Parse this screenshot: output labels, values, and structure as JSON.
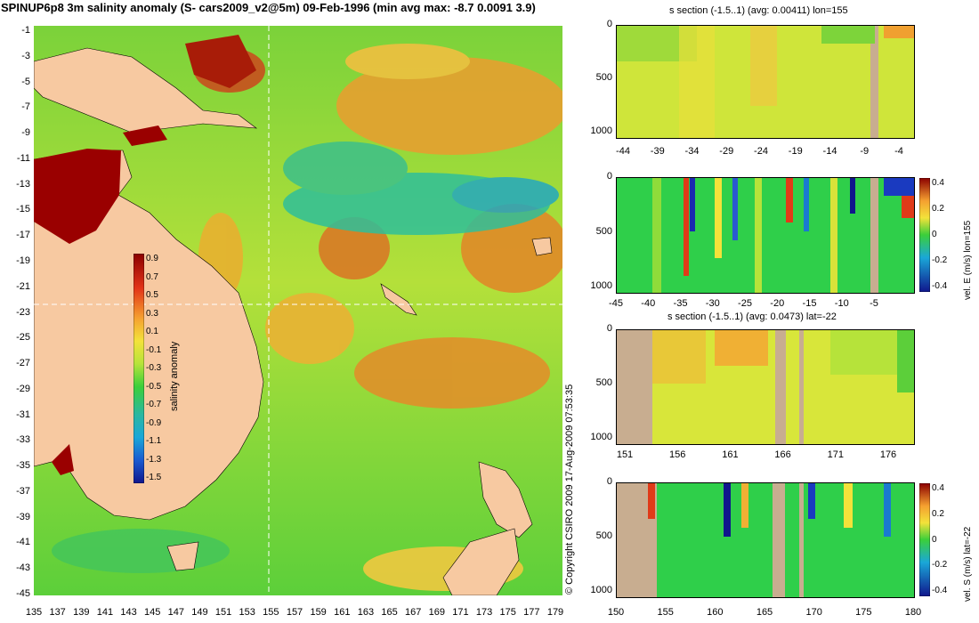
{
  "title": "SPINUP6p8 3m salinity anomaly (S- cars2009_v2@5m) 09-Feb-1996 (min avg max: -8.7 0.0091 3.9)",
  "copyright": "© Copyright CSIRO 2009   17-Aug-2009 07:53:35",
  "map": {
    "yticks": [
      "-1",
      "-3",
      "-5",
      "-7",
      "-9",
      "-11",
      "-13",
      "-15",
      "-17",
      "-19",
      "-21",
      "-23",
      "-25",
      "-27",
      "-29",
      "-31",
      "-33",
      "-35",
      "-37",
      "-39",
      "-41",
      "-43",
      "-45"
    ],
    "xticks": [
      "135",
      "137",
      "139",
      "141",
      "143",
      "145",
      "147",
      "149",
      "151",
      "153",
      "155",
      "157",
      "159",
      "161",
      "163",
      "165",
      "167",
      "169",
      "171",
      "173",
      "175",
      "177",
      "179"
    ],
    "colorbar": {
      "label": "salinity anomaly",
      "ticks": [
        "0.9",
        "0.7",
        "0.5",
        "0.3",
        "0.1",
        "-0.1",
        "-0.3",
        "-0.5",
        "-0.7",
        "-0.9",
        "-1.1",
        "-1.3",
        "-1.5"
      ]
    },
    "section_lon": "155",
    "section_lat": "-22"
  },
  "panels": [
    {
      "title": "s section (-1.5..1) (avg: 0.00411) lon=155",
      "yticks": [
        "0",
        "500",
        "1000"
      ],
      "xticks": [
        "-44",
        "-39",
        "-34",
        "-29",
        "-24",
        "-19",
        "-14",
        "-9",
        "-4"
      ],
      "colorbar": null
    },
    {
      "title": "",
      "yticks": [
        "0",
        "500",
        "1000"
      ],
      "xticks": [
        "-45",
        "-40",
        "-35",
        "-30",
        "-25",
        "-20",
        "-15",
        "-10",
        "-5"
      ],
      "colorbar": {
        "label": "vel. E (m/s) lon=155",
        "ticks": [
          "0.4",
          "0.2",
          "0",
          "-0.2",
          "-0.4"
        ]
      }
    },
    {
      "title": "s section (-1.5..1) (avg: 0.0473) lat=-22",
      "yticks": [
        "0",
        "500",
        "1000"
      ],
      "xticks": [
        "151",
        "156",
        "161",
        "166",
        "171",
        "176"
      ],
      "colorbar": null
    },
    {
      "title": "",
      "yticks": [
        "0",
        "500",
        "1000"
      ],
      "xticks": [
        "150",
        "155",
        "160",
        "165",
        "170",
        "175",
        "180"
      ],
      "colorbar": {
        "label": "vel. S (m/s) lat=-22",
        "ticks": [
          "0.4",
          "0.2",
          "0",
          "-0.2",
          "-0.4"
        ]
      }
    }
  ],
  "colors": {
    "land": "#f7c9a1",
    "section_land": "#c8ad90",
    "salinity_high": "#8b0000",
    "salinity_mid": "#b6e33a",
    "salinity_low": "#10168c"
  }
}
